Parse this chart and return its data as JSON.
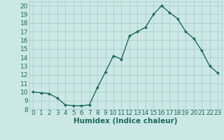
{
  "x": [
    0,
    1,
    2,
    3,
    4,
    5,
    6,
    7,
    8,
    9,
    10,
    11,
    12,
    13,
    14,
    15,
    16,
    17,
    18,
    19,
    20,
    21,
    22,
    23
  ],
  "y": [
    10,
    9.9,
    9.8,
    9.3,
    8.5,
    8.4,
    8.4,
    8.5,
    10.5,
    12.3,
    14.2,
    13.8,
    16.5,
    17.0,
    17.5,
    19.0,
    20.0,
    19.2,
    18.5,
    17.0,
    16.2,
    14.8,
    13.0,
    12.2
  ],
  "line_color": "#1a6b5a",
  "marker": "D",
  "marker_size": 2.0,
  "bg_color": "#cce8e6",
  "grid_color": "#a0c8c6",
  "tick_color": "#1a6b5a",
  "label_color": "#1a6b5a",
  "xlabel": "Humidex (Indice chaleur)",
  "xlim": [
    -0.5,
    23.5
  ],
  "ylim": [
    8,
    20.5
  ],
  "yticks": [
    8,
    9,
    10,
    11,
    12,
    13,
    14,
    15,
    16,
    17,
    18,
    19,
    20
  ],
  "xticks": [
    0,
    1,
    2,
    3,
    4,
    5,
    6,
    7,
    8,
    9,
    10,
    11,
    12,
    13,
    14,
    15,
    16,
    17,
    18,
    19,
    20,
    21,
    22,
    23
  ],
  "xlabel_fontsize": 7.5,
  "tick_fontsize": 6.5,
  "line_width": 1.0
}
